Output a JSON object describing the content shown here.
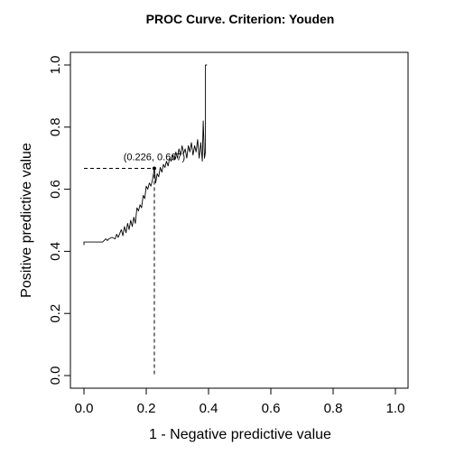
{
  "chart_data": {
    "type": "line",
    "title": "PROC Curve. Criterion: Youden",
    "xlabel": "1 - Negative predictive value",
    "ylabel": "Positive predictive value",
    "xlim": [
      0,
      1
    ],
    "ylim": [
      0,
      1
    ],
    "xticks": [
      "0.0",
      "0.2",
      "0.4",
      "0.6",
      "0.8",
      "1.0"
    ],
    "yticks": [
      "0.0",
      "0.2",
      "0.4",
      "0.6",
      "0.8",
      "1.0"
    ],
    "grid": false,
    "series": [
      {
        "x": [
          0.0,
          0.0,
          0.01,
          0.02,
          0.03,
          0.04,
          0.05,
          0.06,
          0.07,
          0.075,
          0.08,
          0.09,
          0.1,
          0.105,
          0.11,
          0.12,
          0.125,
          0.13,
          0.135,
          0.14,
          0.145,
          0.15,
          0.155,
          0.16,
          0.165,
          0.17,
          0.175,
          0.18,
          0.185,
          0.19,
          0.195,
          0.2,
          0.205,
          0.21,
          0.215,
          0.22,
          0.226,
          0.23,
          0.235,
          0.24,
          0.245,
          0.25,
          0.255,
          0.26,
          0.265,
          0.27,
          0.275,
          0.28,
          0.285,
          0.29,
          0.295,
          0.3,
          0.305,
          0.31,
          0.315,
          0.32,
          0.325,
          0.33,
          0.335,
          0.34,
          0.345,
          0.35,
          0.355,
          0.36,
          0.365,
          0.37,
          0.375,
          0.38,
          0.383,
          0.387,
          0.39,
          0.39,
          0.395
        ],
        "y": [
          0.42,
          0.43,
          0.43,
          0.43,
          0.43,
          0.43,
          0.43,
          0.43,
          0.44,
          0.435,
          0.44,
          0.445,
          0.44,
          0.455,
          0.445,
          0.47,
          0.45,
          0.48,
          0.46,
          0.49,
          0.47,
          0.5,
          0.48,
          0.51,
          0.49,
          0.54,
          0.53,
          0.55,
          0.54,
          0.58,
          0.57,
          0.61,
          0.6,
          0.62,
          0.61,
          0.63,
          0.667,
          0.62,
          0.65,
          0.64,
          0.67,
          0.655,
          0.68,
          0.67,
          0.69,
          0.675,
          0.7,
          0.69,
          0.71,
          0.695,
          0.72,
          0.7,
          0.73,
          0.71,
          0.74,
          0.715,
          0.73,
          0.7,
          0.74,
          0.72,
          0.75,
          0.71,
          0.74,
          0.72,
          0.76,
          0.7,
          0.75,
          0.69,
          0.82,
          0.7,
          0.72,
          1.0,
          1.0
        ]
      }
    ],
    "optimal_point": {
      "x": 0.226,
      "y": 0.667,
      "label": "(0.226, 0.667)"
    }
  }
}
